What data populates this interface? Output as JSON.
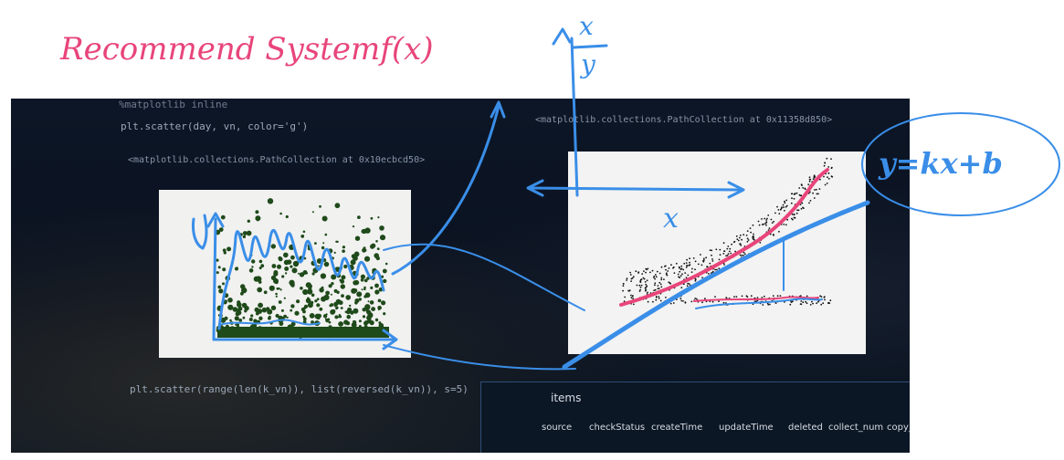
{
  "handwriting": {
    "title": "Recommend Systemf(x)",
    "fraction_top": "x",
    "fraction_bottom": "y",
    "x_label": "x",
    "equation": "y=kx+b"
  },
  "code": {
    "line_top": "%matplotlib inline",
    "scatter_call": "plt.scatter(day, vn, color='g')",
    "output_left": "<matplotlib.collections.PathCollection at 0x10ecbcd50>",
    "output_right": "<matplotlib.collections.PathCollection at 0x11358d850>",
    "scatter_call_2": "plt.scatter(range(len(k_vn)), list(reversed(k_vn)), s=5)"
  },
  "table": {
    "title": "items",
    "headers": [
      "source",
      "checkStatus",
      "createTime",
      "updateTime",
      "deleted",
      "collect_num",
      "copy_nu"
    ]
  },
  "colors": {
    "ink_blue": "#3a8ee8",
    "ink_pink": "#e8457a",
    "scatter_green": "#1f4a1a",
    "screen_bg": "#0b1522"
  }
}
